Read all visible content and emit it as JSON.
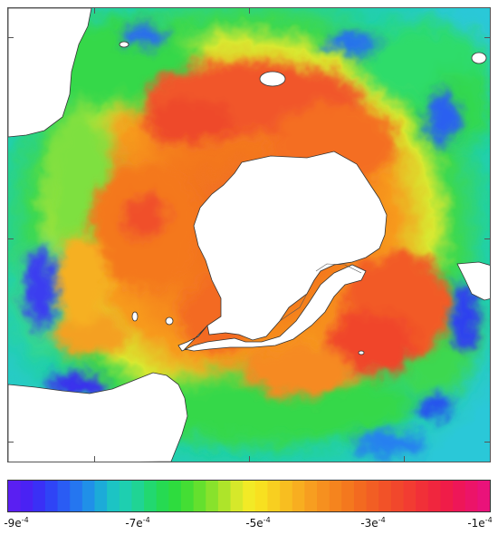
{
  "map": {
    "field_colors": {
      "ocean_outer": "#2ecfd0",
      "ocean_green": "#28d848",
      "ring_yellow": "#d8e830",
      "ring_orange": "#f7921e",
      "ring_red": "#f2502a",
      "ring_deep_red": "#e8361e",
      "deep_blue": "#3a2cf0",
      "land": "#ffffff",
      "coastline": "#333333"
    }
  },
  "colorbar": {
    "colors": [
      "#5a1ff2",
      "#4a22f4",
      "#3a30f6",
      "#2f44f6",
      "#2a5cf4",
      "#2576f0",
      "#2090e8",
      "#1cabd8",
      "#1cc4c4",
      "#1ecfb0",
      "#20d494",
      "#22d870",
      "#26da52",
      "#2edc3e",
      "#44de34",
      "#64e02e",
      "#88e22c",
      "#aee42a",
      "#d6e82a",
      "#f2ea26",
      "#f8e020",
      "#f8cf20",
      "#f8be20",
      "#f8ae20",
      "#f79e20",
      "#f6901f",
      "#f5841e",
      "#f4781e",
      "#f36a20",
      "#f25e24",
      "#f25228",
      "#f1472c",
      "#f23c32",
      "#f13038",
      "#f0263e",
      "#f01c48",
      "#ee1658",
      "#ec1468",
      "#ea127a"
    ],
    "tick_labels": [
      {
        "base": "-9e",
        "exp": "-4"
      },
      {
        "base": "-7e",
        "exp": "-4"
      },
      {
        "base": "-5e",
        "exp": "-4"
      },
      {
        "base": "-3e",
        "exp": "-4"
      },
      {
        "base": "-1e",
        "exp": "-4"
      }
    ]
  }
}
